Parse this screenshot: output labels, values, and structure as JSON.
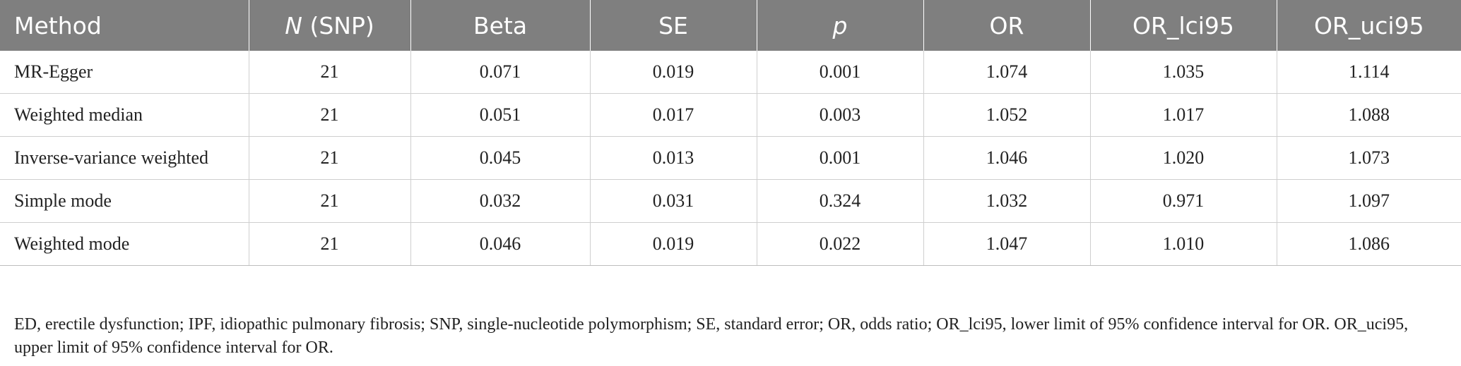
{
  "table": {
    "headers": [
      {
        "pre": "Method",
        "ital": "",
        "post": ""
      },
      {
        "pre": "",
        "ital": "N",
        "post": " (SNP)"
      },
      {
        "pre": "Beta",
        "ital": "",
        "post": ""
      },
      {
        "pre": "SE",
        "ital": "",
        "post": ""
      },
      {
        "pre": "",
        "ital": "p",
        "post": ""
      },
      {
        "pre": "OR",
        "ital": "",
        "post": ""
      },
      {
        "pre": "OR_lci95",
        "ital": "",
        "post": ""
      },
      {
        "pre": "OR_uci95",
        "ital": "",
        "post": ""
      }
    ],
    "rows": [
      [
        "MR-Egger",
        "21",
        "0.071",
        "0.019",
        "0.001",
        "1.074",
        "1.035",
        "1.114"
      ],
      [
        "Weighted median",
        "21",
        "0.051",
        "0.017",
        "0.003",
        "1.052",
        "1.017",
        "1.088"
      ],
      [
        "Inverse-variance weighted",
        "21",
        "0.045",
        "0.013",
        "0.001",
        "1.046",
        "1.020",
        "1.073"
      ],
      [
        "Simple mode",
        "21",
        "0.032",
        "0.031",
        "0.324",
        "1.032",
        "0.971",
        "1.097"
      ],
      [
        "Weighted mode",
        "21",
        "0.046",
        "0.019",
        "0.022",
        "1.047",
        "1.010",
        "1.086"
      ]
    ]
  },
  "footnote": "ED, erectile dysfunction; IPF, idiopathic pulmonary fibrosis; SNP, single-nucleotide polymorphism; SE, standard error; OR, odds ratio; OR_lci95, lower limit of 95% confidence interval for OR. OR_uci95, upper limit of 95% confidence interval for OR.",
  "colors": {
    "header_bg": "#7f7f7f",
    "header_text": "#ffffff",
    "grid": "#cfcfcf"
  }
}
